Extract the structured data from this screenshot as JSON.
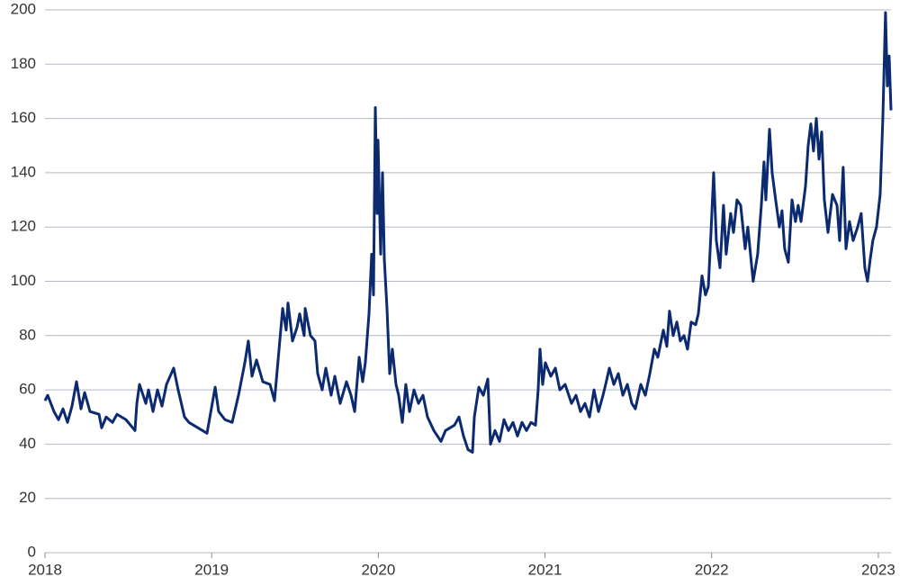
{
  "chart_data": {
    "type": "line",
    "x": [
      2018.0,
      2018.016,
      2018.054,
      2018.081,
      2018.108,
      2018.135,
      2018.162,
      2018.189,
      2018.216,
      2018.238,
      2018.27,
      2018.324,
      2018.34,
      2018.367,
      2018.405,
      2018.432,
      2018.486,
      2018.54,
      2018.551,
      2018.567,
      2018.605,
      2018.621,
      2018.648,
      2018.675,
      2018.702,
      2018.729,
      2018.772,
      2018.799,
      2018.837,
      2018.864,
      2018.918,
      2018.972,
      2019.021,
      2019.042,
      2019.08,
      2019.123,
      2019.161,
      2019.199,
      2019.22,
      2019.242,
      2019.269,
      2019.307,
      2019.35,
      2019.377,
      2019.426,
      2019.447,
      2019.458,
      2019.485,
      2019.512,
      2019.528,
      2019.555,
      2019.561,
      2019.593,
      2019.62,
      2019.636,
      2019.663,
      2019.685,
      2019.717,
      2019.739,
      2019.771,
      2019.809,
      2019.836,
      2019.858,
      2019.885,
      2019.906,
      2019.922,
      2019.944,
      2019.96,
      2019.971,
      2019.982,
      2019.993,
      2019.998,
      2020.014,
      2020.025,
      2020.036,
      2020.052,
      2020.068,
      2020.084,
      2020.106,
      2020.122,
      2020.144,
      2020.165,
      2020.187,
      2020.214,
      2020.241,
      2020.268,
      2020.295,
      2020.333,
      2020.376,
      2020.403,
      2020.457,
      2020.484,
      2020.511,
      2020.538,
      2020.565,
      2020.576,
      2020.603,
      2020.63,
      2020.657,
      2020.673,
      2020.7,
      2020.727,
      2020.754,
      2020.781,
      2020.808,
      2020.835,
      2020.862,
      2020.889,
      2020.916,
      2020.943,
      2020.959,
      2020.97,
      2020.986,
      2021.002,
      2021.035,
      2021.062,
      2021.089,
      2021.121,
      2021.159,
      2021.186,
      2021.213,
      2021.24,
      2021.267,
      2021.294,
      2021.321,
      2021.348,
      2021.364,
      2021.386,
      2021.413,
      2021.44,
      2021.467,
      2021.494,
      2021.521,
      2021.542,
      2021.575,
      2021.602,
      2021.629,
      2021.656,
      2021.677,
      2021.71,
      2021.731,
      2021.747,
      2021.769,
      2021.791,
      2021.812,
      2021.834,
      2021.855,
      2021.877,
      2021.904,
      2021.92,
      2021.942,
      2021.963,
      2021.98,
      2021.996,
      2022.012,
      2022.028,
      2022.05,
      2022.071,
      2022.087,
      2022.114,
      2022.131,
      2022.152,
      2022.174,
      2022.201,
      2022.217,
      2022.249,
      2022.276,
      2022.298,
      2022.314,
      2022.325,
      2022.347,
      2022.363,
      2022.384,
      2022.406,
      2022.422,
      2022.438,
      2022.46,
      2022.482,
      2022.503,
      2022.519,
      2022.536,
      2022.563,
      2022.579,
      2022.595,
      2022.611,
      2022.628,
      2022.644,
      2022.66,
      2022.676,
      2022.698,
      2022.725,
      2022.752,
      2022.768,
      2022.789,
      2022.806,
      2022.827,
      2022.849,
      2022.876,
      2022.897,
      2022.919,
      2022.935,
      2022.951,
      2022.967,
      2022.989,
      2023.011,
      2023.027,
      2023.043,
      2023.054,
      2023.065,
      2023.076
    ],
    "series": [
      {
        "color": "#0b2a6f",
        "values": [
          56,
          58,
          52,
          49,
          53,
          48,
          54,
          63,
          53,
          59,
          52,
          51,
          46,
          50,
          48,
          51,
          49,
          45,
          55,
          62,
          55,
          60,
          52,
          60,
          54,
          62,
          68,
          60,
          50,
          48,
          46,
          44,
          61,
          52,
          49,
          48,
          58,
          70,
          78,
          65,
          71,
          63,
          62,
          56,
          90,
          82,
          92,
          78,
          83,
          88,
          80,
          90,
          80,
          78,
          66,
          60,
          68,
          58,
          65,
          55,
          63,
          58,
          52,
          72,
          63,
          70,
          88,
          110,
          95,
          164,
          125,
          152,
          110,
          140,
          108,
          90,
          66,
          75,
          62,
          58,
          48,
          62,
          52,
          60,
          55,
          58,
          50,
          45,
          41,
          45,
          47,
          50,
          43,
          38,
          37,
          50,
          61,
          58,
          64,
          40,
          45,
          41,
          49,
          45,
          48,
          43,
          48,
          45,
          48,
          47,
          60,
          75,
          62,
          70,
          65,
          68,
          60,
          62,
          55,
          58,
          52,
          55,
          50,
          60,
          52,
          58,
          62,
          68,
          62,
          66,
          58,
          62,
          55,
          53,
          62,
          58,
          66,
          75,
          72,
          82,
          76,
          89,
          80,
          85,
          78,
          80,
          75,
          85,
          84,
          88,
          102,
          95,
          98,
          118,
          140,
          115,
          105,
          128,
          110,
          125,
          118,
          130,
          128,
          112,
          120,
          100,
          110,
          128,
          144,
          130,
          156,
          140,
          130,
          120,
          126,
          112,
          107,
          130,
          122,
          128,
          122,
          135,
          150,
          158,
          148,
          160,
          145,
          155,
          130,
          118,
          132,
          128,
          115,
          142,
          112,
          122,
          115,
          120,
          125,
          105,
          100,
          108,
          115,
          120,
          132,
          160,
          199,
          172,
          183,
          163
        ]
      }
    ],
    "xlim": [
      2018,
      2023.076
    ],
    "xticks": [
      2018,
      2019,
      2020,
      2021,
      2022,
      2023
    ],
    "ylim": [
      0,
      200
    ],
    "yticks": [
      0,
      20,
      40,
      60,
      80,
      100,
      120,
      140,
      160,
      180,
      200
    ],
    "grid": true
  }
}
